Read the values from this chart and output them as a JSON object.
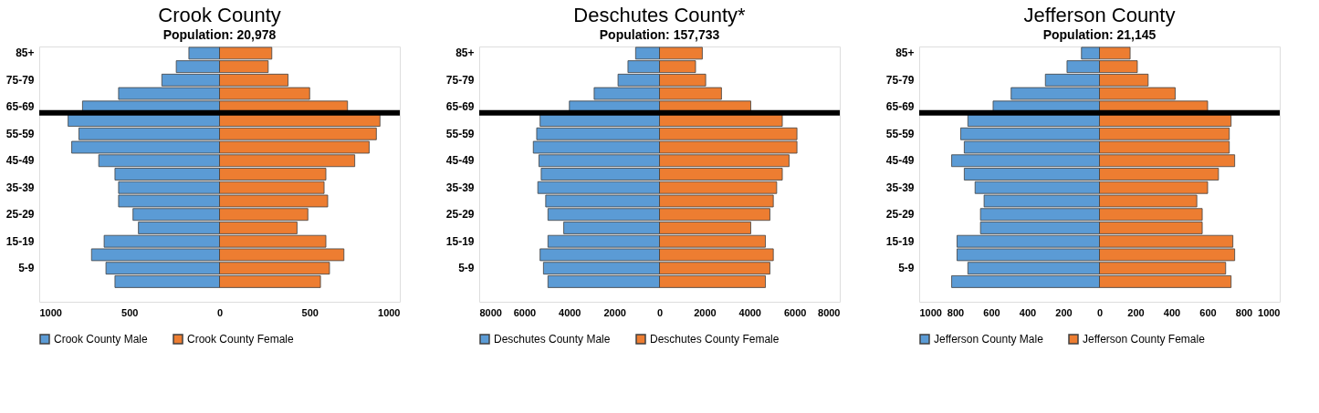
{
  "chart_data": [
    {
      "type": "bar",
      "orientation": "horizontal",
      "stacked": true,
      "title": "Crook County",
      "subtitle": "Population: 20,978",
      "categories": [
        "85+",
        null,
        "75-79",
        null,
        "65-69",
        null,
        "55-59",
        null,
        "45-49",
        null,
        "35-39",
        null,
        "25-29",
        null,
        "15-19",
        null,
        "5-9",
        null,
        null
      ],
      "series": [
        {
          "name": "Crook County Male",
          "color": "#5b9bd5",
          "values": [
            -170,
            -240,
            -320,
            -560,
            -760,
            -840,
            -780,
            -820,
            -670,
            -580,
            -560,
            -560,
            -480,
            -450,
            -640,
            -710,
            -630,
            -580,
            null
          ]
        },
        {
          "name": "Crook County Female",
          "color": "#ed7d31",
          "values": [
            290,
            270,
            380,
            500,
            710,
            890,
            870,
            830,
            750,
            590,
            580,
            600,
            490,
            430,
            590,
            690,
            610,
            560,
            null
          ]
        }
      ],
      "xlim": [
        -1000,
        1000
      ],
      "xticks": [
        {
          "value": -1000,
          "label": "1000"
        },
        {
          "value": -500,
          "label": "500"
        },
        0,
        500,
        1000
      ],
      "legend": "bottom",
      "ref_lines": [
        {
          "axis": "y",
          "value": "65-69",
          "color": "#000000"
        }
      ]
    },
    {
      "type": "bar",
      "orientation": "horizontal",
      "stacked": true,
      "title": "Deschutes County*",
      "subtitle": "Population: 157,733",
      "categories": [
        "85+",
        null,
        "75-79",
        null,
        "65-69",
        null,
        "55-59",
        null,
        "45-49",
        null,
        "35-39",
        null,
        "25-29",
        null,
        "15-19",
        null,
        "5-9",
        null,
        null
      ],
      "series": [
        {
          "name": "Deschutes County Male",
          "color": "#5b9bd5",
          "values": [
            -1060,
            -1400,
            -1840,
            -2900,
            -4000,
            -5300,
            -5450,
            -5600,
            -5350,
            -5250,
            -5400,
            -5050,
            -4950,
            -4250,
            -4950,
            -5300,
            -5150,
            -4950,
            null
          ]
        },
        {
          "name": "Deschutes County Female",
          "color": "#ed7d31",
          "values": [
            1900,
            1600,
            2050,
            2750,
            4050,
            5450,
            6100,
            6100,
            5750,
            5450,
            5200,
            5050,
            4900,
            4050,
            4700,
            5050,
            4900,
            4700,
            null
          ]
        }
      ],
      "xlim": [
        -8000,
        8000
      ],
      "xticks": [
        {
          "value": -8000,
          "label": "8000"
        },
        {
          "value": -6000,
          "label": "6000"
        },
        {
          "value": -4000,
          "label": "4000"
        },
        {
          "value": -2000,
          "label": "2000"
        },
        0,
        2000,
        4000,
        6000,
        8000
      ],
      "legend": "bottom",
      "ref_lines": [
        {
          "axis": "y",
          "value": "65-69",
          "color": "#000000"
        }
      ]
    },
    {
      "type": "bar",
      "orientation": "horizontal",
      "stacked": true,
      "title": "Jefferson County",
      "subtitle": "Population: 21,145",
      "categories": [
        "85+",
        null,
        "75-79",
        null,
        "65-69",
        null,
        "55-59",
        null,
        "45-49",
        null,
        "35-39",
        null,
        "25-29",
        null,
        "15-19",
        null,
        "5-9",
        null,
        null
      ],
      "series": [
        {
          "name": "Jefferson County Male",
          "color": "#5b9bd5",
          "values": [
            -100,
            -180,
            -300,
            -490,
            -590,
            -730,
            -770,
            -750,
            -820,
            -750,
            -690,
            -640,
            -660,
            -660,
            -790,
            -790,
            -730,
            -820,
            null
          ]
        },
        {
          "name": "Jefferson County Female",
          "color": "#ed7d31",
          "values": [
            170,
            210,
            270,
            420,
            600,
            730,
            720,
            720,
            750,
            660,
            600,
            540,
            570,
            570,
            740,
            750,
            700,
            730,
            null
          ]
        }
      ],
      "xlim": [
        -1000,
        1000
      ],
      "xticks": [
        {
          "value": -1000,
          "label": "1000"
        },
        {
          "value": -800,
          "label": "800"
        },
        {
          "value": -600,
          "label": "600"
        },
        {
          "value": -400,
          "label": "400"
        },
        {
          "value": -200,
          "label": "200"
        },
        0,
        200,
        400,
        600,
        800,
        1000
      ],
      "legend": "bottom",
      "ref_lines": [
        {
          "axis": "y",
          "value": "65-69",
          "color": "#000000"
        }
      ]
    }
  ]
}
